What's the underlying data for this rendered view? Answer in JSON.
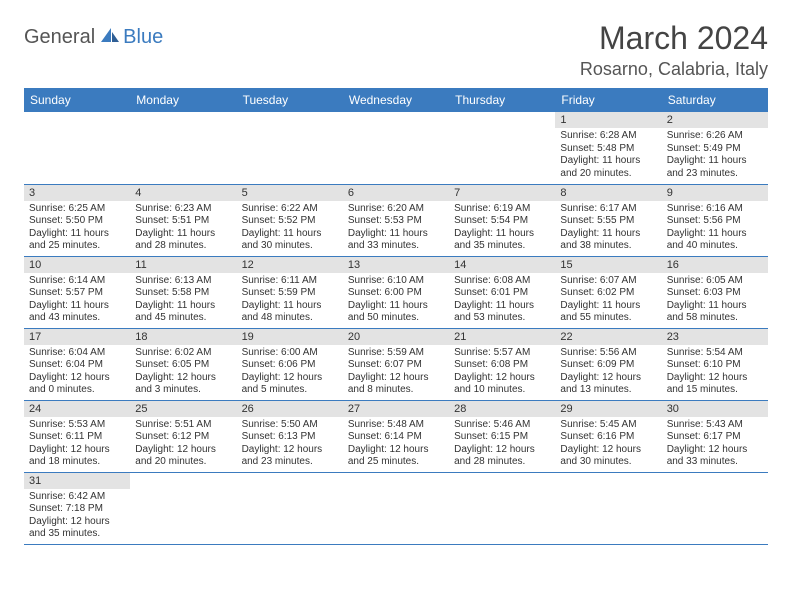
{
  "logo": {
    "text1": "General",
    "text2": "Blue"
  },
  "title": "March 2024",
  "location": "Rosarno, Calabria, Italy",
  "colors": {
    "header_bg": "#3b7bbf",
    "header_text": "#ffffff",
    "daynum_bg": "#e3e3e3",
    "row_border": "#3b7bbf",
    "text": "#333333",
    "bg": "#ffffff"
  },
  "weekdays": [
    "Sunday",
    "Monday",
    "Tuesday",
    "Wednesday",
    "Thursday",
    "Friday",
    "Saturday"
  ],
  "grid": [
    [
      null,
      null,
      null,
      null,
      null,
      {
        "day": "1",
        "sunrise": "Sunrise: 6:28 AM",
        "sunset": "Sunset: 5:48 PM",
        "daylight": "Daylight: 11 hours and 20 minutes."
      },
      {
        "day": "2",
        "sunrise": "Sunrise: 6:26 AM",
        "sunset": "Sunset: 5:49 PM",
        "daylight": "Daylight: 11 hours and 23 minutes."
      }
    ],
    [
      {
        "day": "3",
        "sunrise": "Sunrise: 6:25 AM",
        "sunset": "Sunset: 5:50 PM",
        "daylight": "Daylight: 11 hours and 25 minutes."
      },
      {
        "day": "4",
        "sunrise": "Sunrise: 6:23 AM",
        "sunset": "Sunset: 5:51 PM",
        "daylight": "Daylight: 11 hours and 28 minutes."
      },
      {
        "day": "5",
        "sunrise": "Sunrise: 6:22 AM",
        "sunset": "Sunset: 5:52 PM",
        "daylight": "Daylight: 11 hours and 30 minutes."
      },
      {
        "day": "6",
        "sunrise": "Sunrise: 6:20 AM",
        "sunset": "Sunset: 5:53 PM",
        "daylight": "Daylight: 11 hours and 33 minutes."
      },
      {
        "day": "7",
        "sunrise": "Sunrise: 6:19 AM",
        "sunset": "Sunset: 5:54 PM",
        "daylight": "Daylight: 11 hours and 35 minutes."
      },
      {
        "day": "8",
        "sunrise": "Sunrise: 6:17 AM",
        "sunset": "Sunset: 5:55 PM",
        "daylight": "Daylight: 11 hours and 38 minutes."
      },
      {
        "day": "9",
        "sunrise": "Sunrise: 6:16 AM",
        "sunset": "Sunset: 5:56 PM",
        "daylight": "Daylight: 11 hours and 40 minutes."
      }
    ],
    [
      {
        "day": "10",
        "sunrise": "Sunrise: 6:14 AM",
        "sunset": "Sunset: 5:57 PM",
        "daylight": "Daylight: 11 hours and 43 minutes."
      },
      {
        "day": "11",
        "sunrise": "Sunrise: 6:13 AM",
        "sunset": "Sunset: 5:58 PM",
        "daylight": "Daylight: 11 hours and 45 minutes."
      },
      {
        "day": "12",
        "sunrise": "Sunrise: 6:11 AM",
        "sunset": "Sunset: 5:59 PM",
        "daylight": "Daylight: 11 hours and 48 minutes."
      },
      {
        "day": "13",
        "sunrise": "Sunrise: 6:10 AM",
        "sunset": "Sunset: 6:00 PM",
        "daylight": "Daylight: 11 hours and 50 minutes."
      },
      {
        "day": "14",
        "sunrise": "Sunrise: 6:08 AM",
        "sunset": "Sunset: 6:01 PM",
        "daylight": "Daylight: 11 hours and 53 minutes."
      },
      {
        "day": "15",
        "sunrise": "Sunrise: 6:07 AM",
        "sunset": "Sunset: 6:02 PM",
        "daylight": "Daylight: 11 hours and 55 minutes."
      },
      {
        "day": "16",
        "sunrise": "Sunrise: 6:05 AM",
        "sunset": "Sunset: 6:03 PM",
        "daylight": "Daylight: 11 hours and 58 minutes."
      }
    ],
    [
      {
        "day": "17",
        "sunrise": "Sunrise: 6:04 AM",
        "sunset": "Sunset: 6:04 PM",
        "daylight": "Daylight: 12 hours and 0 minutes."
      },
      {
        "day": "18",
        "sunrise": "Sunrise: 6:02 AM",
        "sunset": "Sunset: 6:05 PM",
        "daylight": "Daylight: 12 hours and 3 minutes."
      },
      {
        "day": "19",
        "sunrise": "Sunrise: 6:00 AM",
        "sunset": "Sunset: 6:06 PM",
        "daylight": "Daylight: 12 hours and 5 minutes."
      },
      {
        "day": "20",
        "sunrise": "Sunrise: 5:59 AM",
        "sunset": "Sunset: 6:07 PM",
        "daylight": "Daylight: 12 hours and 8 minutes."
      },
      {
        "day": "21",
        "sunrise": "Sunrise: 5:57 AM",
        "sunset": "Sunset: 6:08 PM",
        "daylight": "Daylight: 12 hours and 10 minutes."
      },
      {
        "day": "22",
        "sunrise": "Sunrise: 5:56 AM",
        "sunset": "Sunset: 6:09 PM",
        "daylight": "Daylight: 12 hours and 13 minutes."
      },
      {
        "day": "23",
        "sunrise": "Sunrise: 5:54 AM",
        "sunset": "Sunset: 6:10 PM",
        "daylight": "Daylight: 12 hours and 15 minutes."
      }
    ],
    [
      {
        "day": "24",
        "sunrise": "Sunrise: 5:53 AM",
        "sunset": "Sunset: 6:11 PM",
        "daylight": "Daylight: 12 hours and 18 minutes."
      },
      {
        "day": "25",
        "sunrise": "Sunrise: 5:51 AM",
        "sunset": "Sunset: 6:12 PM",
        "daylight": "Daylight: 12 hours and 20 minutes."
      },
      {
        "day": "26",
        "sunrise": "Sunrise: 5:50 AM",
        "sunset": "Sunset: 6:13 PM",
        "daylight": "Daylight: 12 hours and 23 minutes."
      },
      {
        "day": "27",
        "sunrise": "Sunrise: 5:48 AM",
        "sunset": "Sunset: 6:14 PM",
        "daylight": "Daylight: 12 hours and 25 minutes."
      },
      {
        "day": "28",
        "sunrise": "Sunrise: 5:46 AM",
        "sunset": "Sunset: 6:15 PM",
        "daylight": "Daylight: 12 hours and 28 minutes."
      },
      {
        "day": "29",
        "sunrise": "Sunrise: 5:45 AM",
        "sunset": "Sunset: 6:16 PM",
        "daylight": "Daylight: 12 hours and 30 minutes."
      },
      {
        "day": "30",
        "sunrise": "Sunrise: 5:43 AM",
        "sunset": "Sunset: 6:17 PM",
        "daylight": "Daylight: 12 hours and 33 minutes."
      }
    ],
    [
      {
        "day": "31",
        "sunrise": "Sunrise: 6:42 AM",
        "sunset": "Sunset: 7:18 PM",
        "daylight": "Daylight: 12 hours and 35 minutes."
      },
      null,
      null,
      null,
      null,
      null,
      null
    ]
  ]
}
